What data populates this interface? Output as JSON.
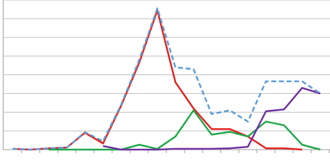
{
  "chart_data": {
    "type": "line",
    "categories": [
      null,
      null,
      null,
      null,
      null,
      null,
      null,
      null,
      null,
      null,
      null,
      null,
      null,
      null,
      null,
      null,
      null,
      null
    ],
    "ylim": [
      0,
      8
    ],
    "yticks": [
      0,
      1,
      2,
      3,
      4,
      5,
      6,
      7,
      8
    ],
    "grid": true,
    "series": [
      {
        "color": "#e3221e",
        "dash": false,
        "values": [
          0.04,
          0,
          0.07,
          0.11,
          0.9,
          0.33,
          2.35,
          4.65,
          7.45,
          3.6,
          2.2,
          1.1,
          1.1,
          0.7,
          0.07,
          0.07,
          0,
          null
        ]
      },
      {
        "color": "#1fa84a",
        "dash": false,
        "values": [
          null,
          null,
          0,
          0,
          0,
          0,
          0,
          0.26,
          0.04,
          0.7,
          2.1,
          0.8,
          0.95,
          0.7,
          1.5,
          1.3,
          0.26,
          0
        ]
      },
      {
        "color": "#7030a0",
        "dash": false,
        "values": [
          null,
          null,
          null,
          null,
          null,
          0.19,
          0,
          0,
          0,
          0.04,
          0.04,
          0.04,
          0.07,
          0.15,
          2.05,
          2.15,
          3.3,
          3.0
        ]
      },
      {
        "color": "#5b9bd5",
        "dash": true,
        "values": [
          0.04,
          0,
          0.07,
          0.11,
          0.93,
          0.45,
          2.4,
          4.8,
          7.55,
          4.4,
          4.3,
          1.9,
          2.1,
          1.5,
          3.65,
          3.65,
          3.65,
          3.0
        ]
      }
    ]
  }
}
